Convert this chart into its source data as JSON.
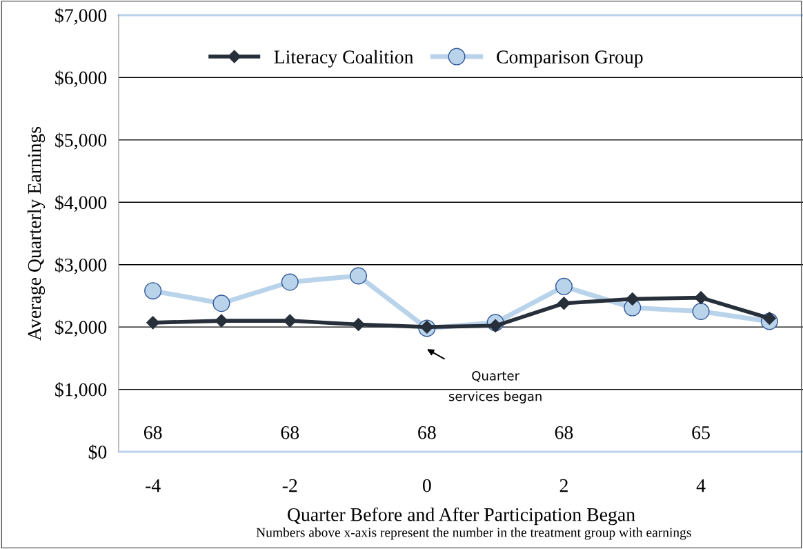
{
  "chart_data": {
    "type": "line",
    "ylabel": "Average Quarterly Earnings",
    "xlabel": "Quarter Before and After Participation Began",
    "x": [
      -4,
      -3,
      -2,
      -1,
      0,
      1,
      2,
      3,
      4,
      5
    ],
    "series": [
      {
        "name": "Literacy Coalition",
        "color": "#262f3a",
        "marker": "diamond",
        "values": [
          2070,
          2100,
          2100,
          2040,
          2000,
          2020,
          2380,
          2450,
          2470,
          2140
        ]
      },
      {
        "name": "Comparison Group",
        "color": "#b9d3ea",
        "marker": "circle",
        "values": [
          2580,
          2380,
          2720,
          2820,
          1980,
          2070,
          2650,
          2310,
          2250,
          2090
        ]
      }
    ],
    "xlim": [
      -4.5,
      5.5
    ],
    "xticks": [
      -4,
      -2,
      0,
      2,
      4
    ],
    "ylim": [
      0,
      7000
    ],
    "yticks": [
      {
        "value": 0,
        "label": "$0"
      },
      {
        "value": 1000,
        "label": "$1,000"
      },
      {
        "value": 2000,
        "label": "$2,000"
      },
      {
        "value": 3000,
        "label": "$3,000"
      },
      {
        "value": 4000,
        "label": "$4,000"
      },
      {
        "value": 5000,
        "label": "$5,000"
      },
      {
        "value": 6000,
        "label": "$6,000"
      },
      {
        "value": 7000,
        "label": "$7,000"
      }
    ],
    "grid": "y",
    "legend": "top",
    "annotations": [
      "68",
      "68",
      "68",
      "68",
      "65",
      "Quarter\nservices began",
      "Numbers above x-axis represent the number in the treatment group with earnings"
    ]
  }
}
